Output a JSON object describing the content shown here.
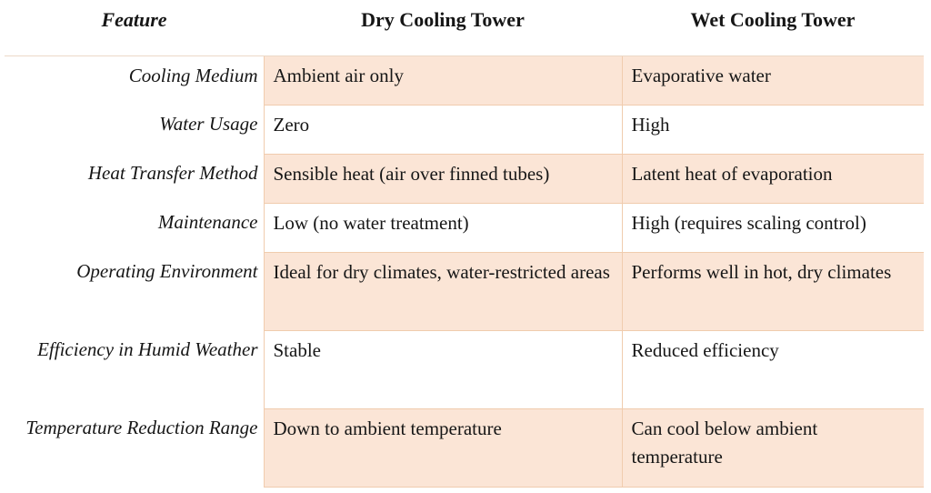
{
  "table": {
    "headers": [
      {
        "label": "Feature"
      },
      {
        "label": "Dry Cooling Tower"
      },
      {
        "label": "Wet Cooling Tower"
      }
    ],
    "rows": [
      {
        "feature": "Cooling Medium",
        "dry": "Ambient air only",
        "wet": "Evaporative water",
        "shaded": true,
        "tall": false
      },
      {
        "feature": "Water Usage",
        "dry": "Zero",
        "wet": "High",
        "shaded": false,
        "tall": false
      },
      {
        "feature": "Heat Transfer Method",
        "dry": "Sensible heat (air over finned tubes)",
        "wet": "Latent heat of evaporation",
        "shaded": true,
        "tall": false
      },
      {
        "feature": "Maintenance",
        "dry": "Low (no water treatment)",
        "wet": "High (requires scaling control)",
        "shaded": false,
        "tall": false
      },
      {
        "feature": "Operating Environment",
        "dry": "Ideal for dry climates, water-restricted areas",
        "wet": "Performs well in hot, dry climates",
        "shaded": true,
        "tall": true
      },
      {
        "feature": "Efficiency in Humid Weather",
        "dry": "Stable",
        "wet": "Reduced efficiency",
        "shaded": false,
        "tall": true
      },
      {
        "feature": "Temperature Reduction Range",
        "dry": "Down to ambient temperature",
        "wet": "Can cool below ambient temperature",
        "shaded": true,
        "tall": true
      }
    ],
    "colors": {
      "shaded_bg": "#fbe5d6",
      "cell_border": "#f0ccae",
      "header_rule": "#ecd9c8",
      "text": "#161616"
    }
  }
}
